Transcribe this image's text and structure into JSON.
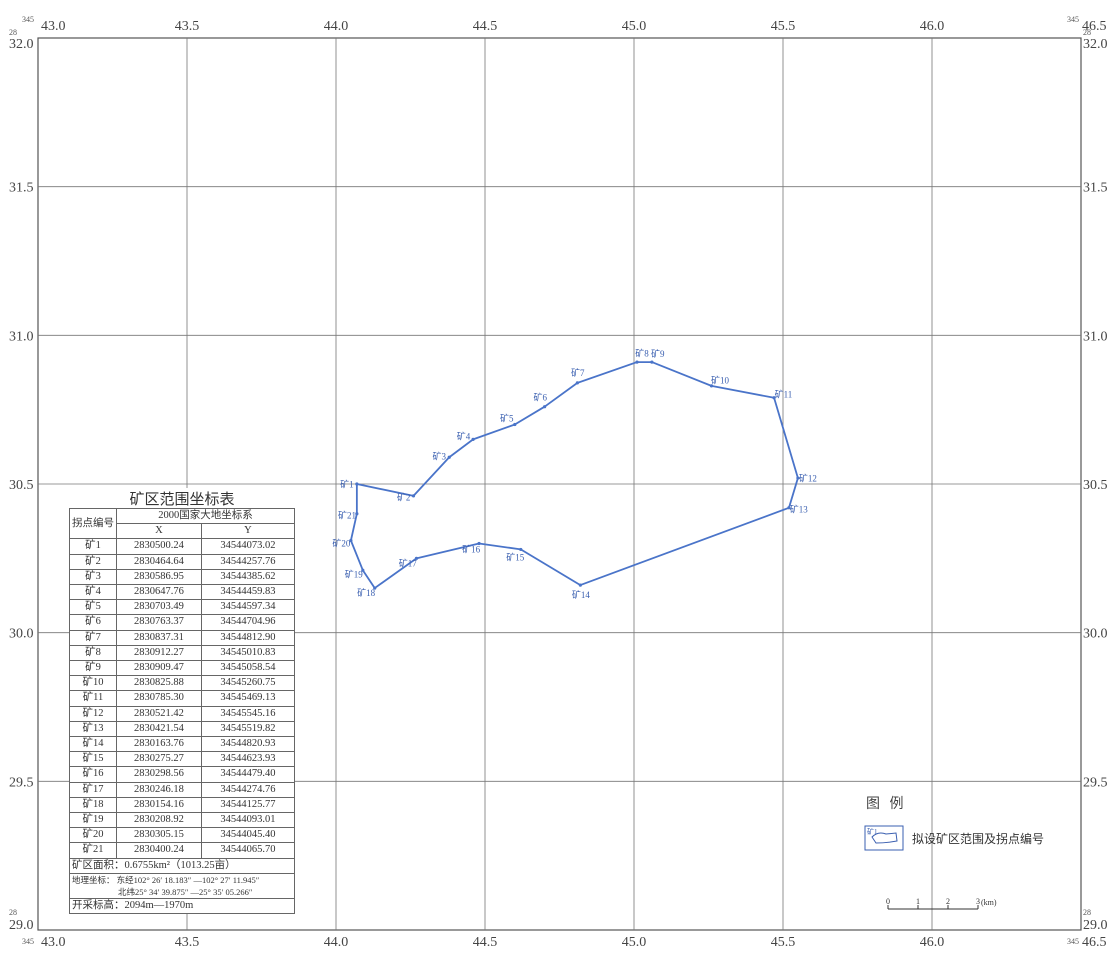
{
  "map": {
    "corner_prefix_x": "345",
    "corner_prefix_y": "28",
    "x_ticks": [
      "43.0",
      "43.5",
      "44.0",
      "44.5",
      "45.0",
      "45.5",
      "46.0",
      "46.5"
    ],
    "y_ticks": [
      "32.0",
      "31.5",
      "31.0",
      "30.5",
      "30.0",
      "29.5",
      "29.0"
    ],
    "x_range": [
      43.0,
      46.5
    ],
    "y_range": [
      29.0,
      32.0
    ],
    "boundary_color": "#4a74c9",
    "points": [
      {
        "id": "1",
        "label": "矿1",
        "x": 44.07,
        "y": 30.5
      },
      {
        "id": "2",
        "label": "矿2",
        "x": 44.26,
        "y": 30.46
      },
      {
        "id": "3",
        "label": "矿3",
        "x": 44.38,
        "y": 30.59
      },
      {
        "id": "4",
        "label": "矿4",
        "x": 44.46,
        "y": 30.65
      },
      {
        "id": "5",
        "label": "矿5",
        "x": 44.6,
        "y": 30.7
      },
      {
        "id": "6",
        "label": "矿6",
        "x": 44.7,
        "y": 30.76
      },
      {
        "id": "7",
        "label": "矿7",
        "x": 44.81,
        "y": 30.84
      },
      {
        "id": "8",
        "label": "矿8",
        "x": 45.01,
        "y": 30.91
      },
      {
        "id": "9",
        "label": "矿9",
        "x": 45.06,
        "y": 30.91
      },
      {
        "id": "10",
        "label": "矿10",
        "x": 45.26,
        "y": 30.83
      },
      {
        "id": "11",
        "label": "矿11",
        "x": 45.47,
        "y": 30.79
      },
      {
        "id": "12",
        "label": "矿12",
        "x": 45.55,
        "y": 30.52
      },
      {
        "id": "13",
        "label": "矿13",
        "x": 45.52,
        "y": 30.42
      },
      {
        "id": "14",
        "label": "矿14",
        "x": 44.82,
        "y": 30.16
      },
      {
        "id": "15",
        "label": "矿15",
        "x": 44.62,
        "y": 30.28
      },
      {
        "id": "16",
        "label": "矿16",
        "x": 44.48,
        "y": 30.3
      },
      {
        "id": "17",
        "label": "矿17",
        "x": 44.27,
        "y": 30.25
      },
      {
        "id": "18",
        "label": "矿18",
        "x": 44.13,
        "y": 30.15
      },
      {
        "id": "19",
        "label": "矿19",
        "x": 44.09,
        "y": 30.21
      },
      {
        "id": "20",
        "label": "矿20",
        "x": 44.05,
        "y": 30.31
      },
      {
        "id": "21",
        "label": "矿21",
        "x": 44.07,
        "y": 30.4
      }
    ]
  },
  "table": {
    "title": "矿区范围坐标表",
    "head_point": "拐点编号",
    "head_system": "2000国家大地坐标系",
    "head_x": "X",
    "head_y": "Y",
    "rows": [
      [
        "矿1",
        "2830500.24",
        "34544073.02"
      ],
      [
        "矿2",
        "2830464.64",
        "34544257.76"
      ],
      [
        "矿3",
        "2830586.95",
        "34544385.62"
      ],
      [
        "矿4",
        "2830647.76",
        "34544459.83"
      ],
      [
        "矿5",
        "2830703.49",
        "34544597.34"
      ],
      [
        "矿6",
        "2830763.37",
        "34544704.96"
      ],
      [
        "矿7",
        "2830837.31",
        "34544812.90"
      ],
      [
        "矿8",
        "2830912.27",
        "34545010.83"
      ],
      [
        "矿9",
        "2830909.47",
        "34545058.54"
      ],
      [
        "矿10",
        "2830825.88",
        "34545260.75"
      ],
      [
        "矿11",
        "2830785.30",
        "34545469.13"
      ],
      [
        "矿12",
        "2830521.42",
        "34545545.16"
      ],
      [
        "矿13",
        "2830421.54",
        "34545519.82"
      ],
      [
        "矿14",
        "2830163.76",
        "34544820.93"
      ],
      [
        "矿15",
        "2830275.27",
        "34544623.93"
      ],
      [
        "矿16",
        "2830298.56",
        "34544479.40"
      ],
      [
        "矿17",
        "2830246.18",
        "34544274.76"
      ],
      [
        "矿18",
        "2830154.16",
        "34544125.77"
      ],
      [
        "矿19",
        "2830208.92",
        "34544093.01"
      ],
      [
        "矿20",
        "2830305.15",
        "34544045.40"
      ],
      [
        "矿21",
        "2830400.24",
        "34544065.70"
      ]
    ],
    "area": "矿区面积：0.6755km²（1013.25亩）",
    "geo_label": "地理坐标：",
    "geo_lon": "东经102° 26′ 18.183″ —102° 27′ 11.945″",
    "geo_lat": "北纬25° 34′ 39.875″ —25° 35′ 05.266″",
    "elevation": "开采标高：2094m—1970m"
  },
  "legend": {
    "title": "图 例",
    "item_label": "拟设矿区范围及拐点编号",
    "scale_ticks": [
      "0",
      "1",
      "2",
      "3"
    ],
    "scale_unit": "(km)"
  }
}
